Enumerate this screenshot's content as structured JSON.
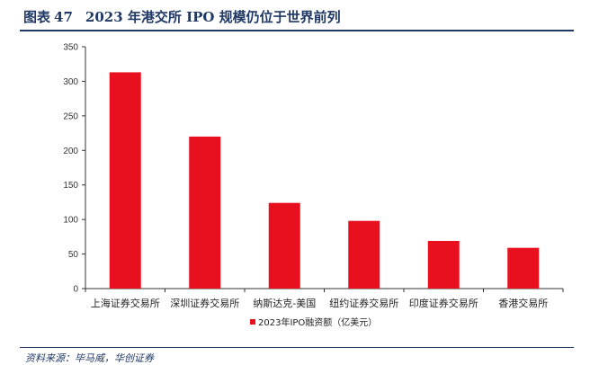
{
  "figure": {
    "label": "图表",
    "number": "47",
    "title": "2023 年港交所 IPO 规模仍位于世界前列"
  },
  "source": "资料来源：毕马威，华创证券",
  "colors": {
    "bar": "#e8101e",
    "axis": "#333333",
    "header": "#1f3864"
  },
  "chart_data": {
    "type": "bar",
    "categories": [
      "上海证券交易所",
      "深圳证券交易所",
      "纳斯达克-美国",
      "纽约证券交易所",
      "印度证券交易所",
      "香港交易所"
    ],
    "series": [
      {
        "name": "2023年IPO融资额（亿美元）",
        "values": [
          313,
          220,
          124,
          98,
          69,
          59
        ]
      }
    ],
    "ylim": [
      0,
      350
    ],
    "yticks": [
      0,
      50,
      100,
      150,
      200,
      250,
      300,
      350
    ],
    "grid": false,
    "legend": "bottom-center"
  }
}
